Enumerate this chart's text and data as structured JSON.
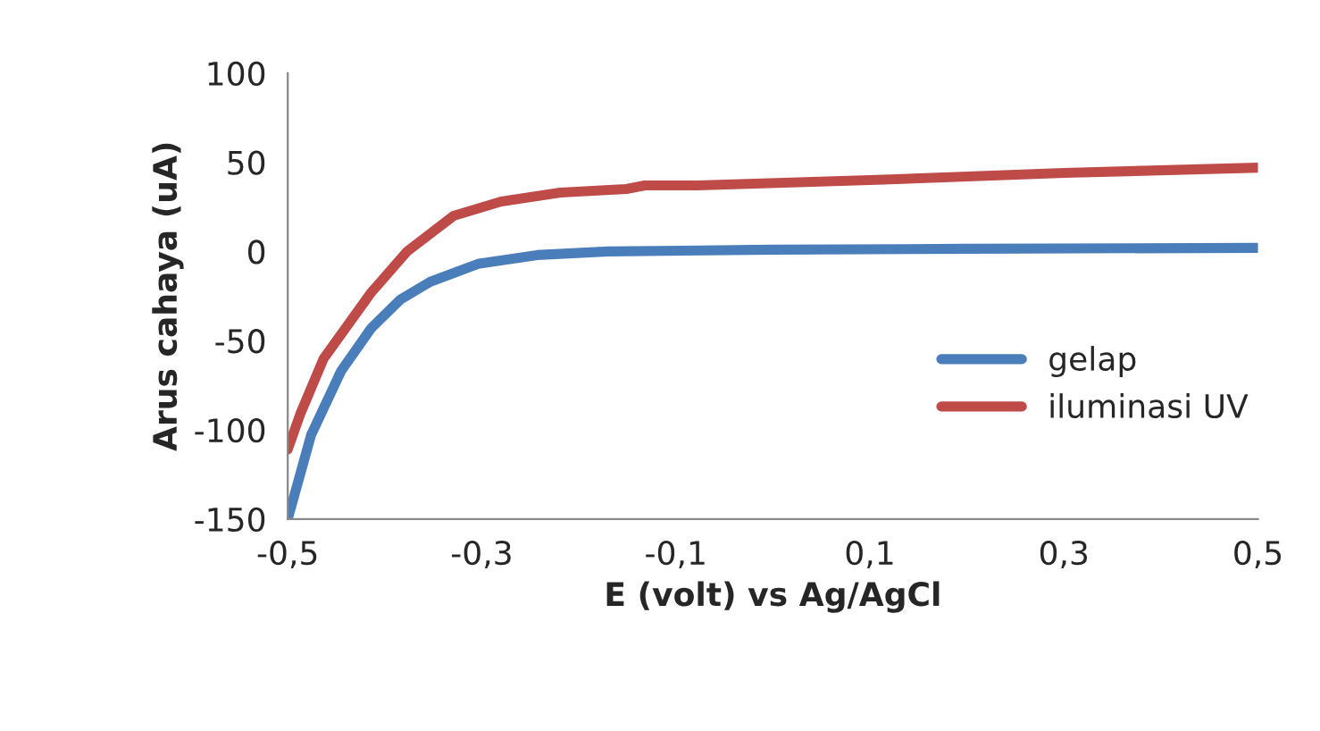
{
  "chart_data": {
    "type": "line",
    "xlabel": "E (volt) vs Ag/AgCl",
    "ylabel": "Arus cahaya (uA)",
    "xlim": [
      -0.5,
      0.5
    ],
    "xticks": [
      {
        "value": -0.5,
        "label": "-0,5"
      },
      {
        "value": -0.3,
        "label": "-0,3"
      },
      {
        "value": -0.1,
        "label": "-0,1"
      },
      {
        "value": 0.1,
        "label": "0,1"
      },
      {
        "value": 0.3,
        "label": "0,3"
      },
      {
        "value": 0.5,
        "label": "0,5"
      }
    ],
    "ylim": [
      -150,
      100
    ],
    "yticks": [
      -150,
      -100,
      -50,
      0,
      50,
      100
    ],
    "grid": false,
    "legend": "right",
    "marker": "none",
    "line_style": "solid",
    "series": [
      {
        "name": "gelap",
        "color": "#4a7ebb",
        "x": [
          -0.5,
          -0.476,
          -0.445,
          -0.414,
          -0.384,
          -0.353,
          -0.304,
          -0.243,
          -0.17,
          0.0,
          0.2,
          0.5
        ],
        "values": [
          -150,
          -103,
          -67,
          -43,
          -27,
          -17,
          -7,
          -2,
          0,
          1,
          1.5,
          2
        ]
      },
      {
        "name": "iluminasi UV",
        "color": "#be4b48",
        "x": [
          -0.5,
          -0.487,
          -0.463,
          -0.414,
          -0.377,
          -0.329,
          -0.28,
          -0.219,
          -0.151,
          -0.132,
          -0.078,
          0.1,
          0.3,
          0.5
        ],
        "values": [
          -111,
          -91,
          -60,
          -23,
          0,
          20,
          28,
          33,
          35,
          37,
          37,
          40,
          44,
          47
        ]
      }
    ]
  }
}
